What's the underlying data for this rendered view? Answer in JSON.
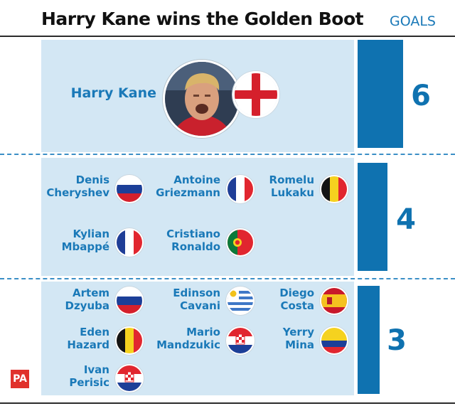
{
  "chart_data": {
    "type": "bar",
    "title": "Harry Kane wins the Golden Boot",
    "unit_label": "GOALS",
    "groups": [
      {
        "goals": 6,
        "players": [
          {
            "name": "Harry Kane",
            "country": "england"
          }
        ]
      },
      {
        "goals": 4,
        "players": [
          {
            "name": "Denis\nCheryshev",
            "country": "russia"
          },
          {
            "name": "Antoine\nGriezmann",
            "country": "france"
          },
          {
            "name": "Romelu\nLukaku",
            "country": "belgium"
          },
          {
            "name": "Kylian\nMbappé",
            "country": "france"
          },
          {
            "name": "Cristiano\nRonaldo",
            "country": "portugal"
          }
        ]
      },
      {
        "goals": 3,
        "players": [
          {
            "name": "Artem\nDzyuba",
            "country": "russia"
          },
          {
            "name": "Edinson\nCavani",
            "country": "uruguay"
          },
          {
            "name": "Diego\nCosta",
            "country": "spain"
          },
          {
            "name": "Eden\nHazard",
            "country": "belgium"
          },
          {
            "name": "Mario\nMandzukic",
            "country": "croatia"
          },
          {
            "name": "Yerry\nMina",
            "country": "colombia"
          },
          {
            "name": "Ivan\nPerisic",
            "country": "croatia"
          }
        ]
      }
    ],
    "colors": {
      "bar": "#0f72b0",
      "panel": "#d3e7f4",
      "label": "#1a79b8"
    }
  },
  "source_logo": "PA"
}
